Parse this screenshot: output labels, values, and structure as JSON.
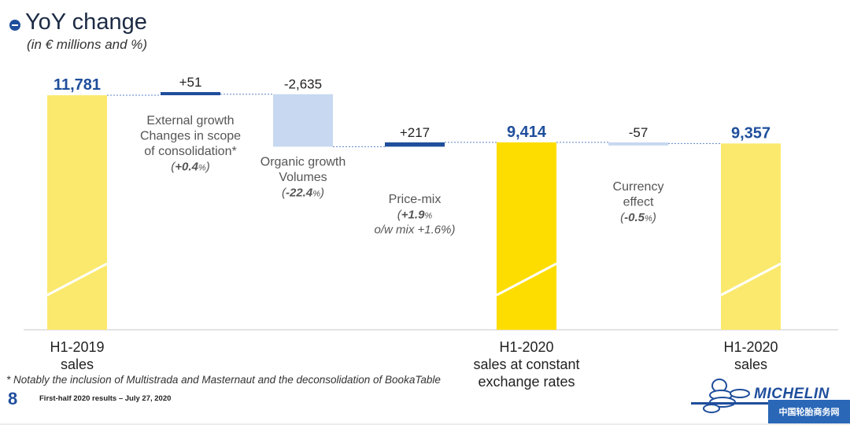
{
  "header": {
    "bullet_icon": "circle-minus-icon",
    "title": "YoY change",
    "subtitle": "(in € millions and %)"
  },
  "chart_data": {
    "type": "bar",
    "subtype": "waterfall",
    "title": "YoY change",
    "subtitle": "(in € millions and %)",
    "grid": false,
    "legend": "none",
    "y_range": [
      0,
      11781
    ],
    "steps": [
      {
        "kind": "total",
        "value": 11781,
        "value_label": "11,781",
        "category_lines": [
          "H1-2019",
          "sales"
        ],
        "desc_lines": [],
        "pct_prefix": "",
        "pct_value": "",
        "pct_unit": "",
        "pct_suffix": "",
        "extra_line": "",
        "color": "#fbe96e"
      },
      {
        "kind": "delta",
        "value": 51,
        "value_label": "+51",
        "category_lines": [],
        "desc_lines": [
          "External growth",
          "Changes in scope",
          "of consolidation*"
        ],
        "pct_prefix": "(",
        "pct_value": "+0.4",
        "pct_unit": "%",
        "pct_suffix": ")",
        "extra_line": "",
        "color": "#1f4e9c"
      },
      {
        "kind": "delta",
        "value": -2635,
        "value_label": "-2,635",
        "category_lines": [],
        "desc_lines": [
          "Organic growth",
          "Volumes"
        ],
        "pct_prefix": "(",
        "pct_value": "-22.4",
        "pct_unit": "%",
        "pct_suffix": ")",
        "extra_line": "",
        "color": "#c7d8f0"
      },
      {
        "kind": "delta",
        "value": 217,
        "value_label": "+217",
        "category_lines": [],
        "desc_lines": [
          "Price-mix"
        ],
        "pct_prefix": "(",
        "pct_value": "+1.9",
        "pct_unit": "%",
        "pct_suffix": "",
        "extra_line": "o/w mix +1.6%)",
        "color": "#1f4e9c"
      },
      {
        "kind": "total",
        "value": 9414,
        "value_label": "9,414",
        "category_lines": [
          "H1-2020",
          "sales at constant",
          "exchange rates"
        ],
        "desc_lines": [],
        "pct_prefix": "",
        "pct_value": "",
        "pct_unit": "",
        "pct_suffix": "",
        "extra_line": "",
        "color": "#fddd00"
      },
      {
        "kind": "delta",
        "value": -57,
        "value_label": "-57",
        "category_lines": [],
        "desc_lines": [
          "Currency",
          "effect"
        ],
        "pct_prefix": "(",
        "pct_value": "-0.5",
        "pct_unit": "%",
        "pct_suffix": ")",
        "extra_line": "",
        "color": "#c7d8f0"
      },
      {
        "kind": "total",
        "value": 9357,
        "value_label": "9,357",
        "category_lines": [
          "H1-2020",
          "sales"
        ],
        "desc_lines": [],
        "pct_prefix": "",
        "pct_value": "",
        "pct_unit": "",
        "pct_suffix": "",
        "extra_line": "",
        "color": "#fbe96e"
      }
    ]
  },
  "footer": {
    "footnote": "* Notably the inclusion of Multistrada and Masternaut and the deconsolidation of BookaTable",
    "page_number": "8",
    "text": "First-half 2020 results – July 27, 2020",
    "logo_text": "MICHELIN",
    "logo_icon": "michelin-man-logo-icon",
    "watermark_text": "中国轮胎商务网"
  },
  "colors": {
    "accent": "#1f4e9c",
    "total_bar": "#fbe96e",
    "total_bar_strong": "#fddd00",
    "negative_bar": "#c7d8f0",
    "positive_bar": "#1f4e9c"
  }
}
